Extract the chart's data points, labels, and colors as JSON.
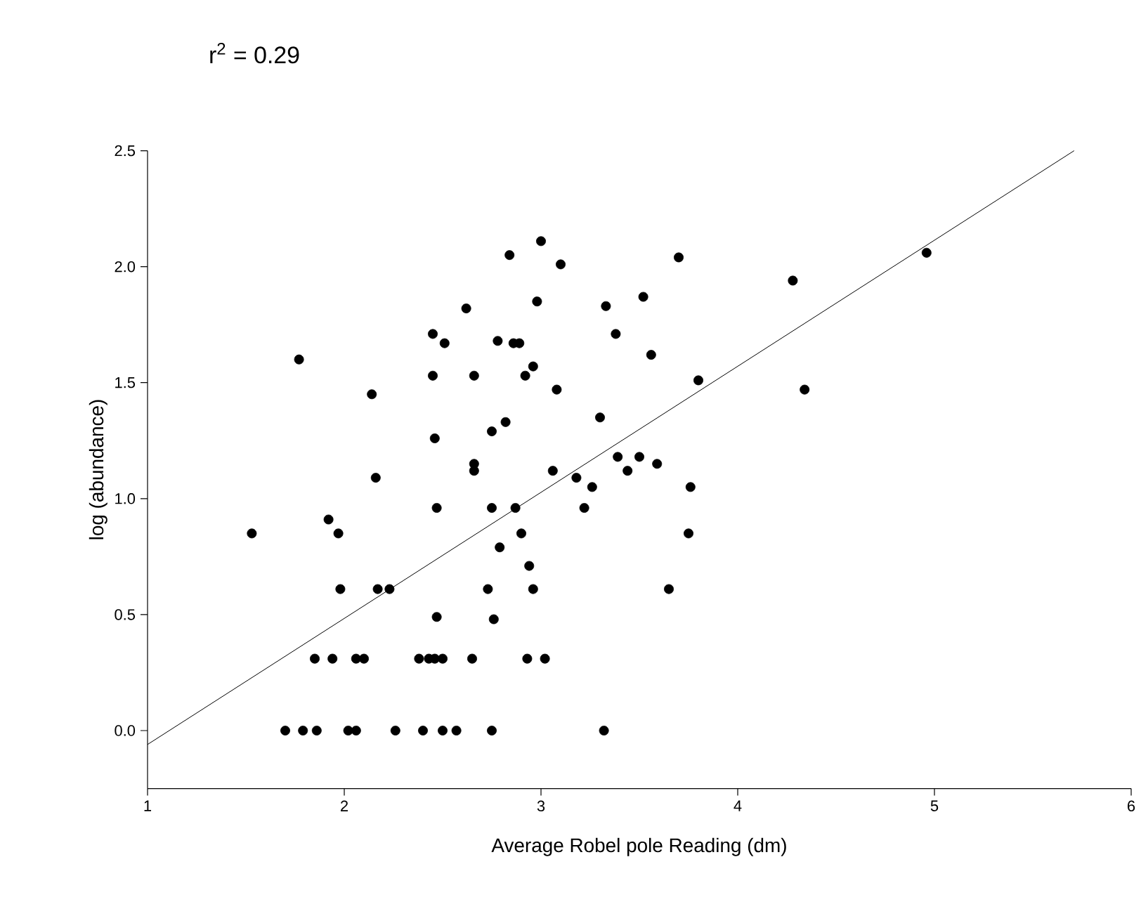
{
  "chart_data": {
    "type": "scatter",
    "xlabel": "Average Robel pole Reading (dm)",
    "ylabel": "log (abundance)",
    "annotations": [
      "r$^{2}$ = 0.29"
    ],
    "xlim": [
      1,
      6
    ],
    "ylim": [
      -0.25,
      2.5
    ],
    "xticks": [
      1,
      2,
      3,
      4,
      5,
      6
    ],
    "yticks": [
      {
        "value": 0,
        "label": "0.0"
      },
      {
        "value": 0.5,
        "label": "0.5"
      },
      {
        "value": 1,
        "label": "1.0"
      },
      {
        "value": 1.5,
        "label": "1.5"
      },
      {
        "value": 2,
        "label": "2.0"
      },
      {
        "value": 2.5,
        "label": "2.5"
      }
    ],
    "grid": false,
    "series": [
      {
        "color": "#000000",
        "marker": "circle",
        "x": [
          2.62,
          2.45,
          2.51,
          1.77,
          2.45,
          2.66,
          2.14,
          2.46,
          2.16,
          2.47,
          1.92,
          1.97,
          1.53,
          1.98,
          2.17,
          2.23,
          2.47,
          1.85,
          1.94,
          2.06,
          2.1,
          2.38,
          2.43,
          2.46,
          2.5,
          2.65,
          1.7,
          1.79,
          1.86,
          2.02,
          2.06,
          2.26,
          2.4,
          2.5,
          2.57,
          2.75,
          3.32,
          3.0,
          2.84,
          3.1,
          3.7,
          2.98,
          3.33,
          3.52,
          3.38,
          2.78,
          2.86,
          2.89,
          2.96,
          2.92,
          3.08,
          3.56,
          3.8,
          2.82,
          2.75,
          3.3,
          2.66,
          2.66,
          3.06,
          3.18,
          3.26,
          3.39,
          3.5,
          3.44,
          3.59,
          3.76,
          2.75,
          2.87,
          3.22,
          2.9,
          3.75,
          2.79,
          2.94,
          2.73,
          2.96,
          3.65,
          2.76,
          2.93,
          3.02,
          4.28,
          4.34,
          4.96
        ],
        "values": [
          1.82,
          1.71,
          1.67,
          1.6,
          1.53,
          1.53,
          1.45,
          1.26,
          1.09,
          0.96,
          0.91,
          0.85,
          0.85,
          0.61,
          0.61,
          0.61,
          0.49,
          0.31,
          0.31,
          0.31,
          0.31,
          0.31,
          0.31,
          0.31,
          0.31,
          0.31,
          0,
          0,
          0,
          0,
          0,
          0,
          0,
          0,
          0,
          0,
          0,
          2.11,
          2.05,
          2.01,
          2.04,
          1.85,
          1.83,
          1.87,
          1.71,
          1.68,
          1.67,
          1.67,
          1.57,
          1.53,
          1.47,
          1.62,
          1.51,
          1.33,
          1.29,
          1.35,
          1.15,
          1.12,
          1.12,
          1.09,
          1.05,
          1.18,
          1.18,
          1.12,
          1.15,
          1.05,
          0.96,
          0.96,
          0.96,
          0.85,
          0.85,
          0.79,
          0.71,
          0.61,
          0.61,
          0.61,
          0.48,
          0.31,
          0.31,
          1.94,
          1.47,
          2.06
        ]
      },
      {
        "type": "line",
        "color": "#000000",
        "marker": "none",
        "x": [
          1,
          5.71
        ],
        "values": [
          -0.06,
          2.5
        ]
      }
    ]
  }
}
